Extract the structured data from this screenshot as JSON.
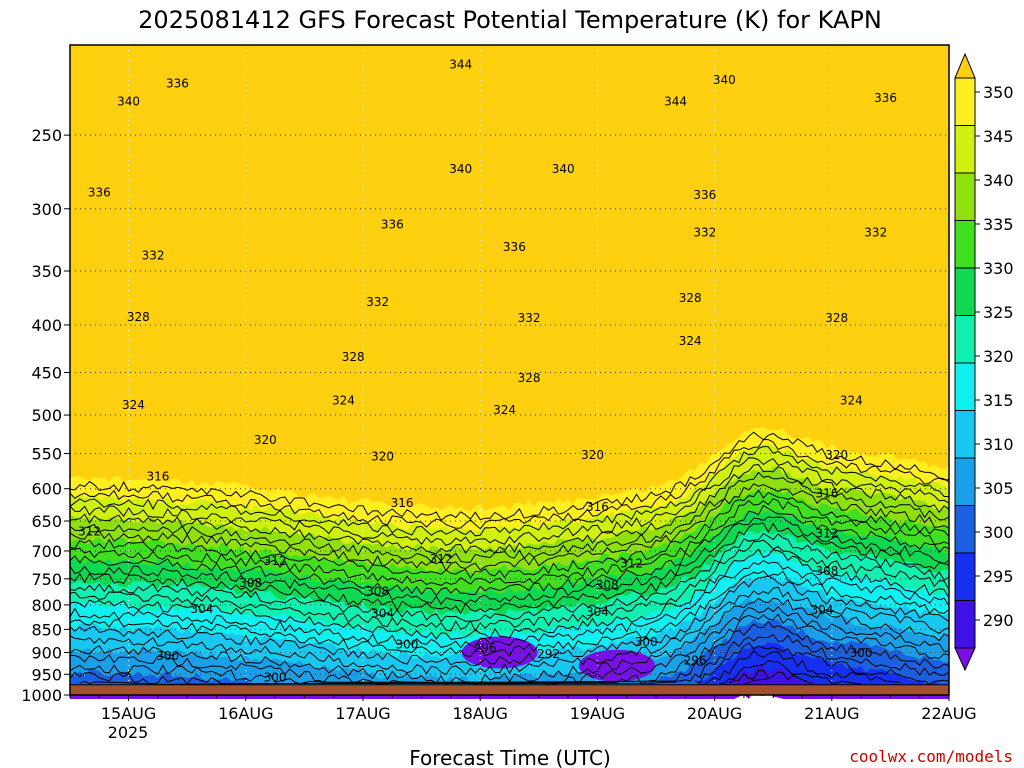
{
  "chart_data": {
    "type": "contour",
    "title": "2025081412 GFS Forecast Potential Temperature (K) for KAPN",
    "xlabel": "Forecast Time (UTC)",
    "ylabel": "",
    "x_ticks": [
      "15AUG",
      "16AUG",
      "17AUG",
      "18AUG",
      "19AUG",
      "20AUG",
      "21AUG",
      "22AUG"
    ],
    "x_tick_hours": [
      12,
      36,
      60,
      84,
      108,
      132,
      156,
      180
    ],
    "x_sublabel": "2025",
    "xlim_hours": [
      0,
      180
    ],
    "y_ticks": [
      250,
      300,
      350,
      400,
      450,
      500,
      550,
      600,
      650,
      700,
      750,
      800,
      850,
      900,
      950,
      1000
    ],
    "ylim": [
      200,
      1000
    ],
    "y_scale": "log",
    "ground_pressure": 975,
    "colorbar_levels": [
      290,
      295,
      300,
      305,
      310,
      315,
      320,
      325,
      330,
      335,
      340,
      345,
      350
    ],
    "colors": [
      "#7a10e8",
      "#3f10e8",
      "#1530f0",
      "#1a60e0",
      "#1aa0e8",
      "#19c8f0",
      "#10f0f0",
      "#10f0b0",
      "#10d850",
      "#40e020",
      "#90e010",
      "#d0f010",
      "#ffee20",
      "#ffd010"
    ],
    "ground_color": "#a0522d",
    "grid": true,
    "contour_labels": [
      {
        "value": 344,
        "hour": 80,
        "p": 210
      },
      {
        "value": 336,
        "hour": 22,
        "p": 220
      },
      {
        "value": 340,
        "hour": 12,
        "p": 230
      },
      {
        "value": 344,
        "hour": 124,
        "p": 230
      },
      {
        "value": 340,
        "hour": 134,
        "p": 218
      },
      {
        "value": 336,
        "hour": 167,
        "p": 228
      },
      {
        "value": 340,
        "hour": 80,
        "p": 272
      },
      {
        "value": 340,
        "hour": 101,
        "p": 272
      },
      {
        "value": 336,
        "hour": 6,
        "p": 288
      },
      {
        "value": 336,
        "hour": 66,
        "p": 312
      },
      {
        "value": 336,
        "hour": 91,
        "p": 330
      },
      {
        "value": 336,
        "hour": 130,
        "p": 290
      },
      {
        "value": 332,
        "hour": 130,
        "p": 318
      },
      {
        "value": 332,
        "hour": 165,
        "p": 318
      },
      {
        "value": 332,
        "hour": 17,
        "p": 337
      },
      {
        "value": 332,
        "hour": 63,
        "p": 378
      },
      {
        "value": 332,
        "hour": 94,
        "p": 393
      },
      {
        "value": 328,
        "hour": 127,
        "p": 374
      },
      {
        "value": 328,
        "hour": 157,
        "p": 393
      },
      {
        "value": 328,
        "hour": 14,
        "p": 392
      },
      {
        "value": 328,
        "hour": 58,
        "p": 433
      },
      {
        "value": 328,
        "hour": 94,
        "p": 456
      },
      {
        "value": 324,
        "hour": 127,
        "p": 416
      },
      {
        "value": 324,
        "hour": 160,
        "p": 482
      },
      {
        "value": 324,
        "hour": 13,
        "p": 488
      },
      {
        "value": 324,
        "hour": 56,
        "p": 482
      },
      {
        "value": 324,
        "hour": 89,
        "p": 494
      },
      {
        "value": 320,
        "hour": 40,
        "p": 532
      },
      {
        "value": 320,
        "hour": 64,
        "p": 554
      },
      {
        "value": 320,
        "hour": 107,
        "p": 552
      },
      {
        "value": 320,
        "hour": 157,
        "p": 552
      },
      {
        "value": 316,
        "hour": 18,
        "p": 582
      },
      {
        "value": 316,
        "hour": 68,
        "p": 622
      },
      {
        "value": 316,
        "hour": 108,
        "p": 628
      },
      {
        "value": 316,
        "hour": 155,
        "p": 607
      },
      {
        "value": 312,
        "hour": 4,
        "p": 667
      },
      {
        "value": 312,
        "hour": 42,
        "p": 718
      },
      {
        "value": 312,
        "hour": 76,
        "p": 714
      },
      {
        "value": 312,
        "hour": 115,
        "p": 722
      },
      {
        "value": 312,
        "hour": 155,
        "p": 670
      },
      {
        "value": 308,
        "hour": 37,
        "p": 758
      },
      {
        "value": 308,
        "hour": 63,
        "p": 774
      },
      {
        "value": 308,
        "hour": 110,
        "p": 762
      },
      {
        "value": 308,
        "hour": 155,
        "p": 736
      },
      {
        "value": 304,
        "hour": 27,
        "p": 808
      },
      {
        "value": 304,
        "hour": 64,
        "p": 817
      },
      {
        "value": 304,
        "hour": 108,
        "p": 814
      },
      {
        "value": 304,
        "hour": 154,
        "p": 810
      },
      {
        "value": 300,
        "hour": 20,
        "p": 908
      },
      {
        "value": 300,
        "hour": 69,
        "p": 883
      },
      {
        "value": 300,
        "hour": 118,
        "p": 877
      },
      {
        "value": 300,
        "hour": 162,
        "p": 901
      },
      {
        "value": 300,
        "hour": 42,
        "p": 958
      },
      {
        "value": 296,
        "hour": 85,
        "p": 890
      },
      {
        "value": 292,
        "hour": 98,
        "p": 903
      },
      {
        "value": 296,
        "hour": 128,
        "p": 918
      }
    ]
  },
  "credit": "coolwx.com/models"
}
